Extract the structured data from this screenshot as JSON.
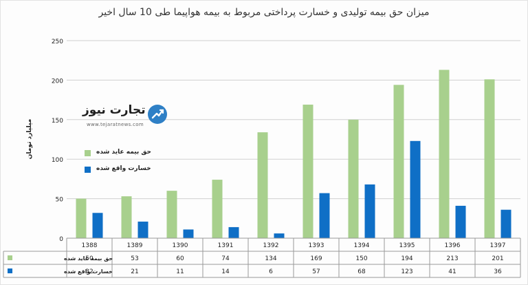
{
  "title": "میزان حق بیمه تولیدی و خسارت پرداختی مربوط به بیمه هواپیما طی 10 سال اخیر",
  "colors": {
    "premium": "#a8d08d",
    "loss": "#0f6fc6",
    "grid": "#d0d0d0",
    "axis": "#333333"
  },
  "watermark": {
    "brand": "تجارت نیوز",
    "site": "www.tejaratnews.com",
    "icon": "logo-mark-icon"
  },
  "chart_data": {
    "type": "bar",
    "title": "میزان حق بیمه تولیدی و خسارت پرداختی مربوط به بیمه هواپیما طی 10 سال اخیر",
    "ylabel": "میلیارد تومان",
    "xlabel": "",
    "ylim": [
      0,
      250
    ],
    "yticks": [
      "0",
      "50",
      "100",
      "150",
      "200",
      "250"
    ],
    "grid": true,
    "legend_position": "left-middle",
    "categories": [
      "1388",
      "1389",
      "1390",
      "1391",
      "1392",
      "1393",
      "1394",
      "1395",
      "1396",
      "1397"
    ],
    "series": [
      {
        "name": "حق بیمه عاید شده",
        "color": "#a8d08d",
        "values": [
          50,
          53,
          60,
          74,
          134,
          169,
          150,
          194,
          213,
          201
        ]
      },
      {
        "name": "خسارت واقع شده",
        "color": "#0f6fc6",
        "values": [
          32,
          21,
          11,
          14,
          6,
          57,
          68,
          123,
          41,
          36
        ]
      }
    ]
  }
}
